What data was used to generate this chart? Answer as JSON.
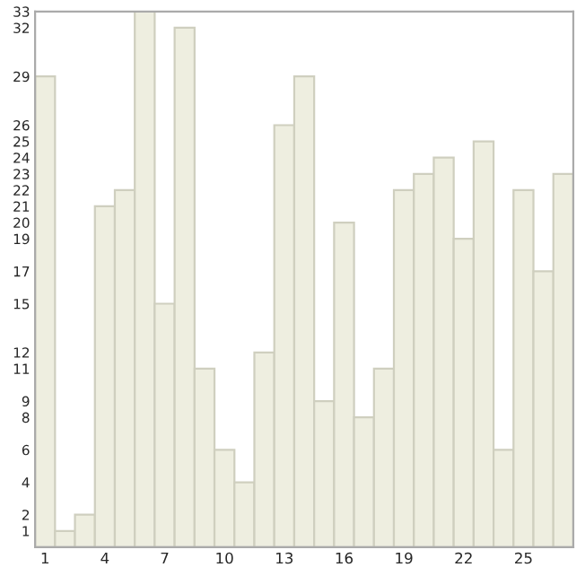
{
  "chart_data": {
    "type": "bar",
    "categories": [
      "1",
      null,
      null,
      "4",
      null,
      null,
      "7",
      null,
      null,
      "10",
      null,
      null,
      "13",
      null,
      null,
      "16",
      null,
      null,
      "19",
      null,
      null,
      "22",
      null,
      null,
      "25",
      null,
      null
    ],
    "values": [
      29,
      1,
      2,
      21,
      22,
      33,
      15,
      32,
      11,
      6,
      4,
      12,
      26,
      29,
      9,
      20,
      8,
      11,
      22,
      23,
      24,
      19,
      25,
      6,
      22,
      17,
      23
    ],
    "color": "#eeeee0",
    "ylim": [
      0,
      33
    ],
    "yticks": [
      1,
      2,
      4,
      6,
      8,
      9,
      11,
      12,
      15,
      17,
      19,
      20,
      21,
      22,
      23,
      24,
      25,
      26,
      29,
      32,
      33
    ],
    "grid": false
  }
}
